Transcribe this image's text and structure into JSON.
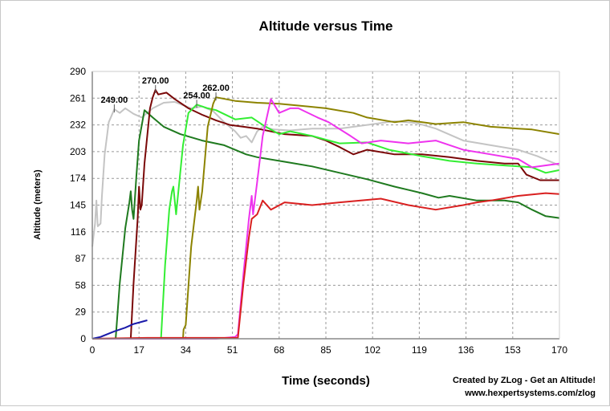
{
  "chart_data": {
    "type": "line",
    "title": "Altitude versus Time",
    "xlabel": "Time (seconds)",
    "ylabel": "Altitude (meters)",
    "xlim": [
      0,
      170
    ],
    "ylim": [
      0,
      290
    ],
    "xticks": [
      0,
      17,
      34,
      51,
      68,
      85,
      102,
      119,
      136,
      153,
      170
    ],
    "yticks": [
      0,
      29,
      58,
      87,
      116,
      145,
      174,
      203,
      232,
      261,
      290
    ],
    "grid": true,
    "credit": [
      "Created by ZLog - Get an Altitude!",
      "www.hexpertsystems.com/zlog"
    ],
    "annotations": [
      {
        "text": "249.00",
        "x": 8,
        "y": 249
      },
      {
        "text": "270.00",
        "x": 23,
        "y": 270
      },
      {
        "text": "254.00",
        "x": 38,
        "y": 254
      },
      {
        "text": "262.00",
        "x": 45,
        "y": 262
      }
    ],
    "series": [
      {
        "name": "gray",
        "color": "#c4c4c4",
        "points": [
          [
            0,
            100
          ],
          [
            1,
            125
          ],
          [
            1.5,
            150
          ],
          [
            2,
            122
          ],
          [
            3,
            125
          ],
          [
            3.5,
            155
          ],
          [
            4.5,
            200
          ],
          [
            6,
            235
          ],
          [
            8,
            249
          ],
          [
            10,
            245
          ],
          [
            12,
            250
          ],
          [
            15,
            244
          ],
          [
            18,
            240
          ],
          [
            22,
            250
          ],
          [
            26,
            256
          ],
          [
            30,
            257
          ],
          [
            36,
            250
          ],
          [
            40,
            252
          ],
          [
            44,
            247
          ],
          [
            48,
            235
          ],
          [
            52,
            225
          ],
          [
            54,
            218
          ],
          [
            56,
            220
          ],
          [
            58,
            213
          ],
          [
            60,
            225
          ],
          [
            62,
            230
          ],
          [
            66,
            227
          ],
          [
            72,
            226
          ],
          [
            80,
            228
          ],
          [
            90,
            228
          ],
          [
            100,
            232
          ],
          [
            110,
            236
          ],
          [
            118,
            234
          ],
          [
            125,
            228
          ],
          [
            135,
            215
          ],
          [
            145,
            210
          ],
          [
            155,
            205
          ],
          [
            162,
            198
          ],
          [
            170,
            188
          ]
        ]
      },
      {
        "name": "dark-green",
        "color": "#1f7a1f",
        "points": [
          [
            0,
            0
          ],
          [
            8.5,
            0
          ],
          [
            10,
            60
          ],
          [
            12,
            120
          ],
          [
            13.5,
            148
          ],
          [
            14,
            160
          ],
          [
            14.5,
            140
          ],
          [
            15,
            130
          ],
          [
            16,
            175
          ],
          [
            17,
            215
          ],
          [
            19,
            248
          ],
          [
            22,
            240
          ],
          [
            26,
            230
          ],
          [
            32,
            222
          ],
          [
            40,
            215
          ],
          [
            48,
            210
          ],
          [
            56,
            200
          ],
          [
            60,
            197
          ],
          [
            70,
            192
          ],
          [
            80,
            187
          ],
          [
            90,
            180
          ],
          [
            100,
            173
          ],
          [
            110,
            165
          ],
          [
            120,
            158
          ],
          [
            126,
            153
          ],
          [
            130,
            155
          ],
          [
            140,
            150
          ],
          [
            150,
            150
          ],
          [
            155,
            148
          ],
          [
            160,
            140
          ],
          [
            165,
            133
          ],
          [
            170,
            131
          ]
        ]
      },
      {
        "name": "maroon",
        "color": "#7a0808",
        "points": [
          [
            0,
            0
          ],
          [
            14,
            0
          ],
          [
            15,
            60
          ],
          [
            16.5,
            130
          ],
          [
            17,
            165
          ],
          [
            17.5,
            140
          ],
          [
            18,
            145
          ],
          [
            19,
            190
          ],
          [
            21,
            250
          ],
          [
            22,
            262
          ],
          [
            23,
            270
          ],
          [
            24,
            265
          ],
          [
            27,
            267
          ],
          [
            30,
            260
          ],
          [
            35,
            250
          ],
          [
            40,
            243
          ],
          [
            45,
            237
          ],
          [
            50,
            232
          ],
          [
            55,
            230
          ],
          [
            60,
            228
          ],
          [
            70,
            222
          ],
          [
            80,
            220
          ],
          [
            85,
            215
          ],
          [
            90,
            208
          ],
          [
            95,
            200
          ],
          [
            100,
            205
          ],
          [
            110,
            200
          ],
          [
            120,
            200
          ],
          [
            130,
            197
          ],
          [
            140,
            193
          ],
          [
            150,
            190
          ],
          [
            155,
            190
          ],
          [
            158,
            178
          ],
          [
            163,
            172
          ],
          [
            170,
            172
          ]
        ]
      },
      {
        "name": "bright-green",
        "color": "#33ee33",
        "points": [
          [
            0,
            0
          ],
          [
            25,
            0
          ],
          [
            26.5,
            80
          ],
          [
            28,
            140
          ],
          [
            29,
            160
          ],
          [
            29.5,
            165
          ],
          [
            30.5,
            135
          ],
          [
            31,
            150
          ],
          [
            33,
            210
          ],
          [
            35,
            245
          ],
          [
            38,
            254
          ],
          [
            42,
            250
          ],
          [
            45,
            248
          ],
          [
            52,
            238
          ],
          [
            58,
            240
          ],
          [
            62,
            232
          ],
          [
            68,
            222
          ],
          [
            72,
            225
          ],
          [
            80,
            220
          ],
          [
            90,
            212
          ],
          [
            100,
            213
          ],
          [
            108,
            205
          ],
          [
            120,
            198
          ],
          [
            130,
            193
          ],
          [
            140,
            190
          ],
          [
            150,
            188
          ],
          [
            160,
            186
          ],
          [
            165,
            180
          ],
          [
            170,
            183
          ]
        ]
      },
      {
        "name": "olive",
        "color": "#8c8300",
        "points": [
          [
            0,
            0
          ],
          [
            33,
            0
          ],
          [
            33.2,
            10
          ],
          [
            34,
            15
          ],
          [
            36,
            100
          ],
          [
            38,
            150
          ],
          [
            38.5,
            165
          ],
          [
            39,
            140
          ],
          [
            40,
            160
          ],
          [
            42,
            230
          ],
          [
            44,
            255
          ],
          [
            45,
            262
          ],
          [
            52,
            258
          ],
          [
            60,
            256
          ],
          [
            68,
            255
          ],
          [
            75,
            253
          ],
          [
            85,
            250
          ],
          [
            95,
            245
          ],
          [
            100,
            240
          ],
          [
            110,
            235
          ],
          [
            115,
            237
          ],
          [
            125,
            233
          ],
          [
            135,
            235
          ],
          [
            145,
            230
          ],
          [
            155,
            228
          ],
          [
            160,
            227
          ],
          [
            170,
            222
          ]
        ]
      },
      {
        "name": "magenta",
        "color": "#ee33ee",
        "points": [
          [
            0,
            0
          ],
          [
            36,
            0
          ],
          [
            45,
            0
          ],
          [
            52,
            2
          ],
          [
            53,
            5
          ],
          [
            55,
            70
          ],
          [
            57,
            130
          ],
          [
            58,
            155
          ],
          [
            58.5,
            135
          ],
          [
            60,
            170
          ],
          [
            62,
            220
          ],
          [
            65,
            260
          ],
          [
            68,
            245
          ],
          [
            72,
            250
          ],
          [
            75,
            250
          ],
          [
            82,
            240
          ],
          [
            86,
            235
          ],
          [
            94,
            220
          ],
          [
            98,
            212
          ],
          [
            105,
            215
          ],
          [
            115,
            212
          ],
          [
            125,
            215
          ],
          [
            135,
            205
          ],
          [
            145,
            200
          ],
          [
            155,
            195
          ],
          [
            160,
            186
          ],
          [
            170,
            190
          ]
        ]
      },
      {
        "name": "red",
        "color": "#d92020",
        "points": [
          [
            0,
            0
          ],
          [
            20,
            1
          ],
          [
            40,
            1
          ],
          [
            53,
            1
          ],
          [
            55,
            60
          ],
          [
            57,
            110
          ],
          [
            58,
            130
          ],
          [
            60,
            135
          ],
          [
            62,
            150
          ],
          [
            65,
            140
          ],
          [
            70,
            148
          ],
          [
            80,
            145
          ],
          [
            90,
            148
          ],
          [
            105,
            152
          ],
          [
            115,
            145
          ],
          [
            125,
            140
          ],
          [
            135,
            145
          ],
          [
            140,
            148
          ],
          [
            145,
            150
          ],
          [
            155,
            155
          ],
          [
            165,
            158
          ],
          [
            170,
            157
          ]
        ]
      },
      {
        "name": "blue",
        "color": "#1a1aaa",
        "points": [
          [
            0,
            0
          ],
          [
            3,
            2
          ],
          [
            8,
            8
          ],
          [
            12,
            12
          ],
          [
            15,
            16
          ],
          [
            20,
            20
          ]
        ]
      }
    ]
  }
}
